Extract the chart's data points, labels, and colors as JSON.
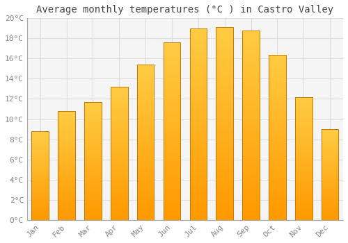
{
  "months": [
    "Jan",
    "Feb",
    "Mar",
    "Apr",
    "May",
    "Jun",
    "Jul",
    "Aug",
    "Sep",
    "Oct",
    "Nov",
    "Dec"
  ],
  "values": [
    8.8,
    10.8,
    11.7,
    13.2,
    15.4,
    17.6,
    19.0,
    19.1,
    18.8,
    16.4,
    12.2,
    9.0
  ],
  "bar_color_top": "#FFCC44",
  "bar_color_bottom": "#FF9900",
  "bar_edge_color": "#CC7700",
  "title": "Average monthly temperatures (°C ) in Castro Valley",
  "ylim": [
    0,
    20
  ],
  "yticks": [
    0,
    2,
    4,
    6,
    8,
    10,
    12,
    14,
    16,
    18,
    20
  ],
  "ytick_labels": [
    "0°C",
    "2°C",
    "4°C",
    "6°C",
    "8°C",
    "10°C",
    "12°C",
    "14°C",
    "16°C",
    "18°C",
    "20°C"
  ],
  "background_color": "#FFFFFF",
  "plot_bg_color": "#F5F5F5",
  "grid_color": "#DDDDDD",
  "title_fontsize": 10,
  "tick_fontsize": 8,
  "font_family": "monospace",
  "tick_color": "#888888",
  "spine_color": "#AAAAAA"
}
